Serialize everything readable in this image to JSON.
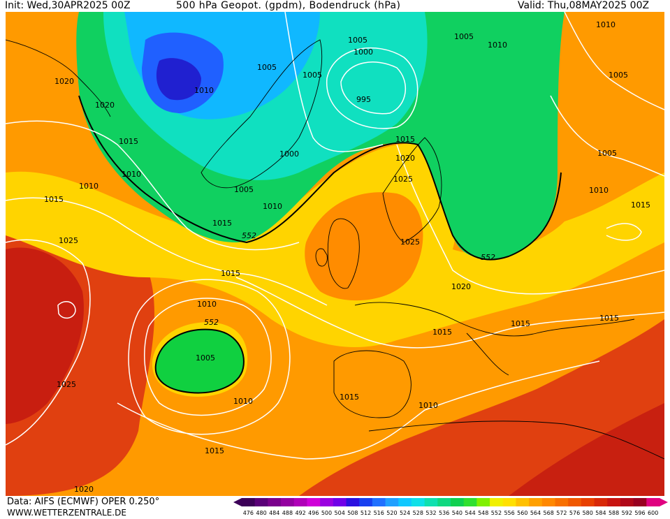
{
  "header": {
    "init": "Init: Wed,30APR2025 00Z",
    "title": "500 hPa Geopot. (gpdm), Bodendruck (hPa)",
    "valid": "Valid: Thu,08MAY2025 00Z"
  },
  "footer": {
    "source": "Data: AIFS (ECMWF) OPER 0.250°",
    "website": "WWW.WETTERZENTRALE.DE"
  },
  "legend": {
    "values": [
      "476",
      "480",
      "484",
      "488",
      "492",
      "496",
      "500",
      "504",
      "508",
      "512",
      "516",
      "520",
      "524",
      "528",
      "532",
      "536",
      "540",
      "544",
      "548",
      "552",
      "556",
      "560",
      "564",
      "568",
      "572",
      "576",
      "580",
      "584",
      "588",
      "592",
      "596",
      "600"
    ],
    "colors": [
      "#3c0058",
      "#5a0078",
      "#7a008c",
      "#9400a0",
      "#b000b8",
      "#d000d8",
      "#9a00e0",
      "#7000e8",
      "#2a10e0",
      "#1840f0",
      "#2070ff",
      "#20a0ff",
      "#10c8ff",
      "#10e0e8",
      "#10e0b0",
      "#10d880",
      "#10d050",
      "#30e030",
      "#80f000",
      "#f0f000",
      "#ffe000",
      "#ffc000",
      "#ffa000",
      "#ff8800",
      "#f87000",
      "#f05800",
      "#e84000",
      "#d82808",
      "#c81410",
      "#b00818",
      "#980020",
      "#e00080"
    ]
  },
  "map": {
    "height_contour_label": "552",
    "isobar_labels": [
      "1010",
      "1005",
      "1005",
      "1005",
      "1010",
      "1010",
      "1020",
      "1005",
      "1000",
      "1005",
      "995",
      "1020",
      "1015",
      "1010",
      "1015",
      "1020",
      "1025",
      "1000",
      "1005",
      "1010",
      "1005",
      "1010",
      "1015",
      "1015",
      "1025",
      "1025",
      "552",
      "552",
      "1010",
      "1015",
      "1015",
      "1020",
      "1015",
      "1015",
      "1010",
      "552",
      "1005",
      "1025",
      "1015",
      "1010",
      "1015",
      "1010",
      "1020",
      "1005",
      "1015",
      "1010"
    ]
  }
}
